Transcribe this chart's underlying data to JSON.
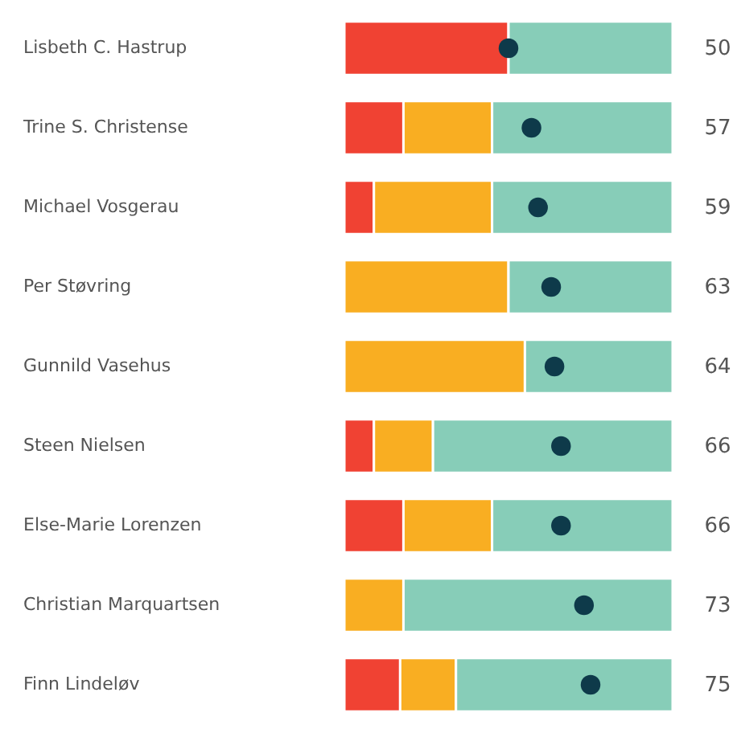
{
  "chart_data": {
    "type": "bar",
    "orientation": "horizontal",
    "stacked": true,
    "tick_labels": "y",
    "xlim": [
      0,
      100
    ],
    "categories": [
      "Lisbeth C. Hastrup",
      "Trine S. Christense",
      "Michael Vosgerau",
      "Per Støvring",
      "Gunnild Vasehus",
      "Steen Nielsen",
      "Else-Marie Lorenzen",
      "Christian Marquartsen",
      "Finn Lindeløv"
    ],
    "series": [
      {
        "color": "#f04233",
        "values": [
          50,
          18,
          9,
          0,
          0,
          9,
          18,
          0,
          17
        ]
      },
      {
        "color": "#f9ae22",
        "values": [
          0,
          27,
          36,
          50,
          55,
          18,
          27,
          18,
          17
        ]
      },
      {
        "color": "#87cdb8",
        "values": [
          50,
          55,
          55,
          50,
          45,
          73,
          55,
          82,
          66
        ]
      },
      {
        "type": "scatter",
        "marker": "circle",
        "color": "#0e3a4a",
        "values": [
          50,
          57,
          59,
          63,
          64,
          66,
          66,
          73,
          75
        ],
        "value_labels": [
          "50",
          "57",
          "59",
          "63",
          "64",
          "66",
          "66",
          "73",
          "75"
        ]
      }
    ]
  }
}
